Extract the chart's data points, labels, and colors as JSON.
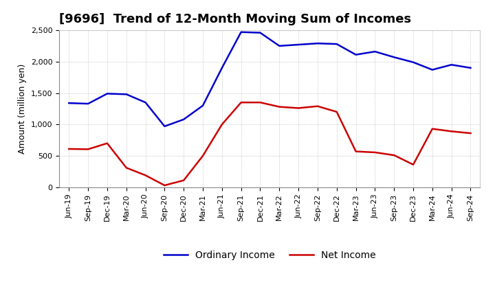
{
  "title": "[9696]  Trend of 12-Month Moving Sum of Incomes",
  "ylabel": "Amount (million yen)",
  "xlabels": [
    "Jun-19",
    "Sep-19",
    "Dec-19",
    "Mar-20",
    "Jun-20",
    "Sep-20",
    "Dec-20",
    "Mar-21",
    "Jun-21",
    "Sep-21",
    "Dec-21",
    "Mar-22",
    "Jun-22",
    "Sep-22",
    "Dec-22",
    "Mar-23",
    "Jun-23",
    "Sep-23",
    "Dec-23",
    "Mar-24",
    "Jun-24",
    "Sep-24"
  ],
  "ordinary_income": [
    1340,
    1330,
    1490,
    1480,
    1350,
    970,
    1080,
    1300,
    1900,
    2470,
    2460,
    2250,
    2270,
    2290,
    2280,
    2110,
    2160,
    2070,
    1990,
    1870,
    1950,
    1900
  ],
  "net_income": [
    610,
    605,
    700,
    310,
    190,
    30,
    110,
    500,
    1000,
    1350,
    1350,
    1280,
    1260,
    1290,
    1200,
    570,
    555,
    510,
    360,
    930,
    890,
    860
  ],
  "ordinary_color": "#0000cc",
  "net_color": "#cc0000",
  "ylim": [
    0,
    2500
  ],
  "yticks": [
    0,
    500,
    1000,
    1500,
    2000,
    2500
  ],
  "background_color": "#ffffff",
  "grid_color": "#999999",
  "title_fontsize": 13,
  "axis_fontsize": 9,
  "tick_fontsize": 8,
  "legend_fontsize": 10
}
